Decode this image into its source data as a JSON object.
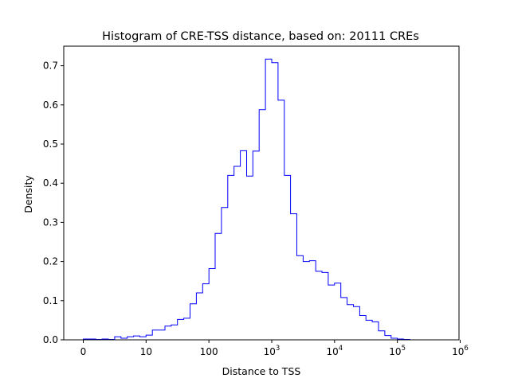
{
  "chart_data": {
    "type": "histogram",
    "title": "Histogram of CRE-TSS distance, based on: 20111 CREs",
    "xlabel": "Distance to TSS",
    "ylabel": "Density",
    "x_scale": "log10(x+1)",
    "xlim": [
      0,
      6
    ],
    "ylim": [
      0,
      0.75
    ],
    "grid": false,
    "series_color": "#0000ff",
    "xticks": [
      {
        "value": 0,
        "base": "0",
        "exp": ""
      },
      {
        "value": 1,
        "base": "10",
        "exp": ""
      },
      {
        "value": 2,
        "base": "100",
        "exp": ""
      },
      {
        "value": 3,
        "base": "10",
        "exp": "3"
      },
      {
        "value": 4,
        "base": "10",
        "exp": "4"
      },
      {
        "value": 5,
        "base": "10",
        "exp": "5"
      },
      {
        "value": 6,
        "base": "10",
        "exp": "6"
      }
    ],
    "yticks": [
      {
        "value": 0.0,
        "label": "0.0"
      },
      {
        "value": 0.1,
        "label": "0.1"
      },
      {
        "value": 0.2,
        "label": "0.2"
      },
      {
        "value": 0.3,
        "label": "0.3"
      },
      {
        "value": 0.4,
        "label": "0.4"
      },
      {
        "value": 0.5,
        "label": "0.5"
      },
      {
        "value": 0.6,
        "label": "0.6"
      },
      {
        "value": 0.7,
        "label": "0.7"
      }
    ],
    "bin_edges": [
      0,
      0.1,
      0.2,
      0.3,
      0.4,
      0.5,
      0.6,
      0.7,
      0.8,
      0.9,
      1.0,
      1.1,
      1.2,
      1.3,
      1.4,
      1.5,
      1.6,
      1.7,
      1.8,
      1.9,
      2.0,
      2.1,
      2.2,
      2.3,
      2.4,
      2.5,
      2.6,
      2.7,
      2.8,
      2.9,
      3.0,
      3.1,
      3.2,
      3.3,
      3.4,
      3.5,
      3.6,
      3.7,
      3.8,
      3.9,
      4.0,
      4.1,
      4.2,
      4.3,
      4.4,
      4.5,
      4.6,
      4.7,
      4.8,
      4.9,
      5.0,
      5.1,
      5.2,
      5.3,
      5.4,
      5.5,
      5.6,
      5.7
    ],
    "densities": [
      0.002,
      0.002,
      0.001,
      0.002,
      0.001,
      0.008,
      0.004,
      0.008,
      0.01,
      0.008,
      0.012,
      0.025,
      0.025,
      0.035,
      0.038,
      0.052,
      0.055,
      0.092,
      0.12,
      0.143,
      0.182,
      0.272,
      0.338,
      0.42,
      0.443,
      0.483,
      0.418,
      0.482,
      0.588,
      0.717,
      0.708,
      0.612,
      0.42,
      0.322,
      0.215,
      0.2,
      0.202,
      0.175,
      0.172,
      0.14,
      0.145,
      0.108,
      0.09,
      0.085,
      0.062,
      0.05,
      0.046,
      0.023,
      0.011,
      0.004,
      0.002,
      0.001,
      0.0,
      0.0,
      0.0,
      0.0,
      0.0
    ]
  }
}
